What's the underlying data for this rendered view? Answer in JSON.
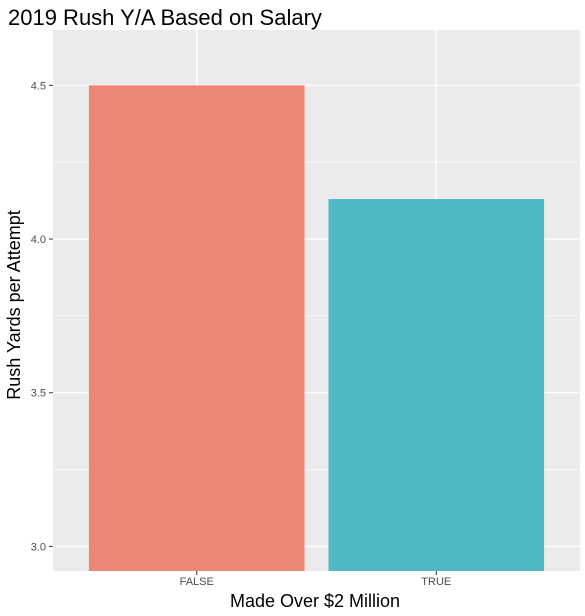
{
  "chart_data": {
    "type": "bar",
    "title": "2019 Rush Y/A Based on Salary",
    "xlabel": "Made Over $2 Million",
    "ylabel": "Rush Yards per Attempt",
    "categories": [
      "FALSE",
      "TRUE"
    ],
    "values": [
      4.5,
      4.13
    ],
    "bar_colors": [
      "#ec8677",
      "#4fb9c4"
    ],
    "ylim": [
      2.92,
      4.68
    ],
    "yticks": [
      3.0,
      3.5,
      4.0,
      4.5
    ],
    "ytick_labels": [
      "3.0",
      "3.5",
      "4.0",
      "4.5"
    ],
    "grid": true,
    "panel_background": "#ebebeb",
    "gridline_color": "#ffffff",
    "legend": "none"
  }
}
